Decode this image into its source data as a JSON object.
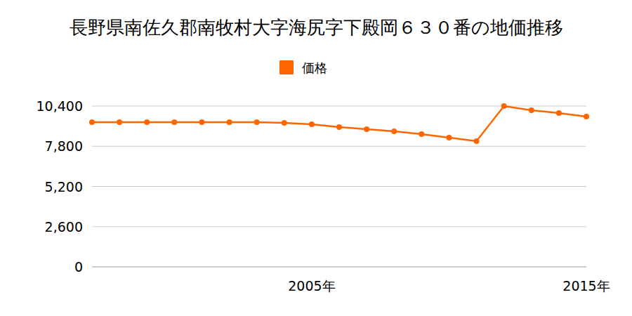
{
  "chart_data": {
    "type": "line",
    "title": "長野県南佐久郡南牧村大字海尻字下殿岡６３０番の地価推移",
    "categories": [
      null,
      null,
      null,
      null,
      null,
      null,
      null,
      null,
      "2005年",
      null,
      null,
      null,
      null,
      null,
      null,
      null,
      null,
      null,
      "2015年"
    ],
    "series": [
      {
        "name": "価格",
        "color": "#ff6600",
        "marker": "circle",
        "values": [
          9350,
          9350,
          9350,
          9350,
          9350,
          9350,
          9350,
          9310,
          9220,
          9040,
          8900,
          8760,
          8580,
          8360,
          8130,
          10400,
          10130,
          9950,
          9720
        ]
      }
    ],
    "ylim": [
      0,
      10400
    ],
    "yticks": [
      0,
      {
        "value": 2600,
        "label": "2,600"
      },
      {
        "value": 5200,
        "label": "5,200"
      },
      {
        "value": 7800,
        "label": "7,800"
      },
      {
        "value": 10400,
        "label": "10,400"
      }
    ],
    "grid": true,
    "legend": "top"
  }
}
